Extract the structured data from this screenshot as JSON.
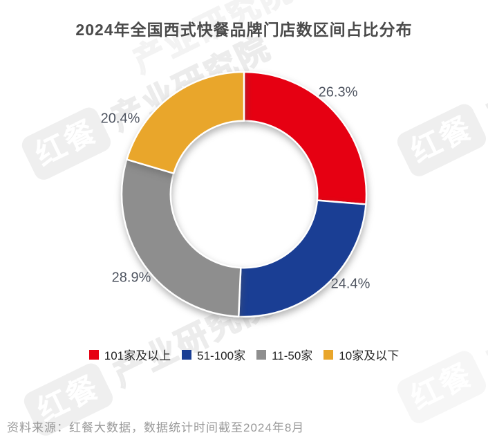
{
  "page": {
    "title": "2024年全国西式快餐品牌门店数区间占比分布"
  },
  "chart_data": {
    "type": "pie",
    "subtype": "donut",
    "title": "2024年全国西式快餐品牌门店数区间占比分布",
    "unit": "%",
    "direction": "clockwise",
    "start_angle_deg": -90,
    "inner_radius_ratio": 0.6,
    "legend_position": "bottom",
    "slices": [
      {
        "label": "101家及以上",
        "value": 26.3,
        "display": "26.3%",
        "color": "#E60012"
      },
      {
        "label": "51-100家",
        "value": 24.4,
        "display": "24.4%",
        "color": "#1A3E94"
      },
      {
        "label": "11-50家",
        "value": 28.9,
        "display": "28.9%",
        "color": "#8E8E8E"
      },
      {
        "label": "10家及以下",
        "value": 20.4,
        "display": "20.4%",
        "color": "#E9A62B"
      }
    ]
  },
  "watermark": {
    "badge": "红餐",
    "text": "产业研究院"
  },
  "footer": {
    "source_text": "资料来源：红餐大数据，数据统计时间截至2024年8月"
  }
}
